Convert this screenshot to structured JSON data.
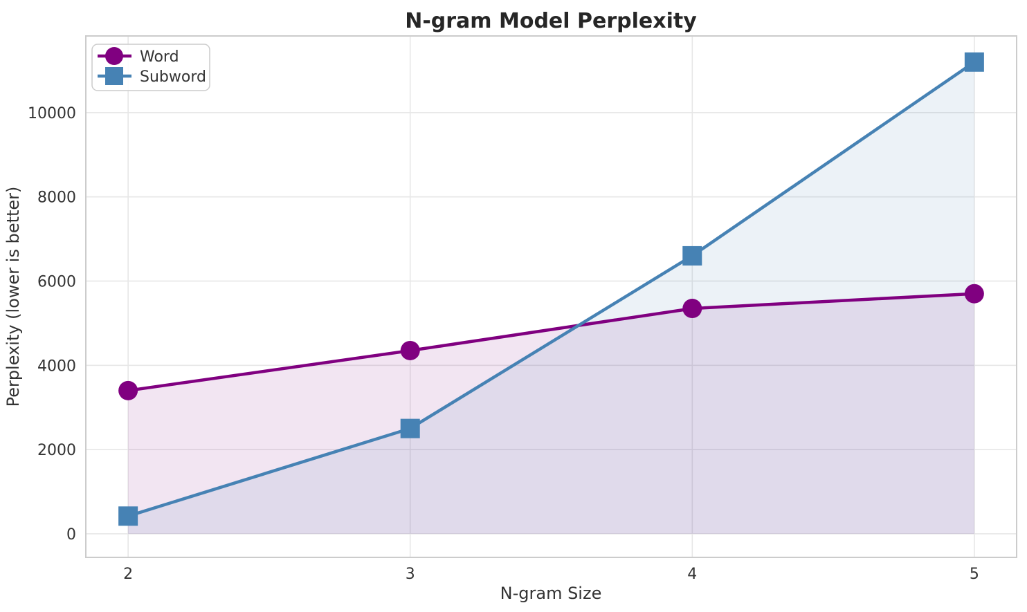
{
  "chart_data": {
    "type": "line",
    "title": "N-gram Model Perplexity",
    "xlabel": "N-gram Size",
    "ylabel": "Perplexity (lower is better)",
    "categories": [
      2,
      3,
      4,
      5
    ],
    "series": [
      {
        "name": "Word",
        "values": [
          3400,
          4350,
          5350,
          5700
        ],
        "color": "#800080",
        "marker": "circle",
        "fill_alpha": 0.1
      },
      {
        "name": "Subword",
        "values": [
          420,
          2500,
          6600,
          11200
        ],
        "color": "#4682B4",
        "marker": "square",
        "fill_alpha": 0.1
      }
    ],
    "area_fill_to_baseline": 0,
    "xticks": [
      2,
      3,
      4,
      5
    ],
    "yticks": [
      0,
      2000,
      4000,
      6000,
      8000,
      10000
    ],
    "xlim": [
      1.85,
      5.15
    ],
    "ylim": [
      -560,
      11820
    ],
    "grid": true,
    "legend_position": "upper left"
  },
  "colors": {
    "word_line": "#800080",
    "subword_line": "#4682B4",
    "grid_line": "#e7e7e7",
    "spine": "#cccccc",
    "tick_text": "#333333",
    "title_text": "#262626",
    "background": "#ffffff",
    "legend_border": "#cccccc"
  }
}
